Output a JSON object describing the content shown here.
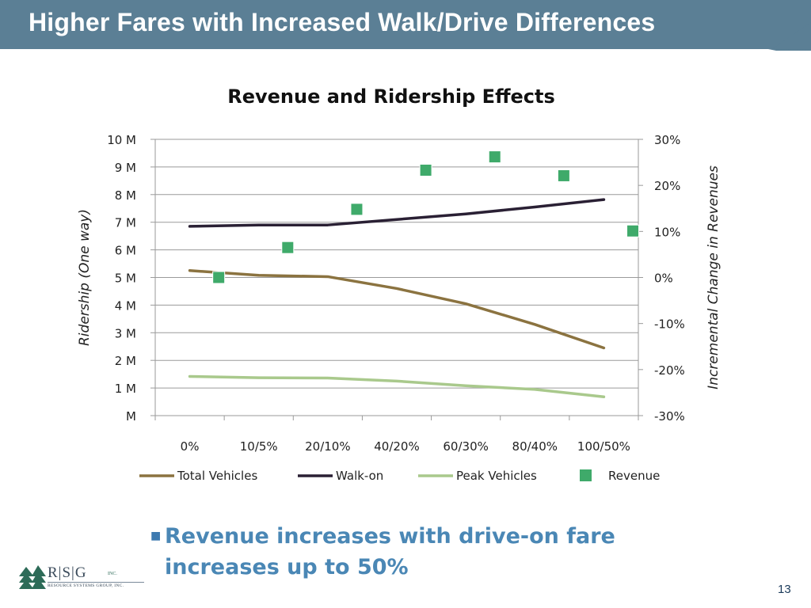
{
  "slide": {
    "title": "Higher Fares with Increased Walk/Drive Differences",
    "bullet": "Revenue increases with drive-on fare increases up to 50%",
    "page_number": "13"
  },
  "logo": {
    "letters": "R|S|G",
    "inc": "INC.",
    "subtitle": "RESOURCE SYSTEMS GROUP, INC."
  },
  "colors": {
    "title_bar": "#5b7f95",
    "total_vehicles": "#8b7340",
    "walk_on": "#2a2034",
    "peak_vehicles": "#a9c98c",
    "revenue": "#3faa6a",
    "bullet_text": "#4a87b5"
  },
  "chart_data": {
    "type": "line",
    "title": "Revenue and Ridership Effects",
    "categories": [
      "0%",
      "10/5%",
      "20/10%",
      "40/20%",
      "60/30%",
      "80/40%",
      "100/50%"
    ],
    "ylabel": "Ridership (One way)",
    "ylabel_right": "Incremental Change in Revenues",
    "ylim": [
      0,
      10000000
    ],
    "ylim_right": [
      -0.3,
      0.3
    ],
    "yticks_left": [
      "M",
      "1 M",
      "2 M",
      "3 M",
      "4 M",
      "5 M",
      "6 M",
      "7 M",
      "8 M",
      "9 M",
      "10 M"
    ],
    "yticks_right": [
      "-30%",
      "-20%",
      "-10%",
      "0%",
      "10%",
      "20%",
      "30%"
    ],
    "grid": true,
    "legend_position": "bottom",
    "series": [
      {
        "name": "Total Vehicles",
        "axis": "left",
        "kind": "line",
        "color": "#8b7340",
        "values": [
          5250000,
          5080000,
          5030000,
          4600000,
          4050000,
          3300000,
          2450000
        ]
      },
      {
        "name": "Walk-on",
        "axis": "left",
        "kind": "line",
        "color": "#2a2034",
        "values": [
          6850000,
          6900000,
          6900000,
          7100000,
          7300000,
          7550000,
          7820000
        ]
      },
      {
        "name": "Peak Vehicles",
        "axis": "left",
        "kind": "line",
        "color": "#a9c98c",
        "values": [
          1420000,
          1370000,
          1360000,
          1250000,
          1080000,
          950000,
          680000
        ]
      },
      {
        "name": "Revenue",
        "axis": "right",
        "kind": "marker",
        "color": "#3faa6a",
        "values": [
          0.0,
          0.065,
          0.148,
          0.233,
          0.262,
          0.221,
          0.101
        ]
      }
    ]
  }
}
